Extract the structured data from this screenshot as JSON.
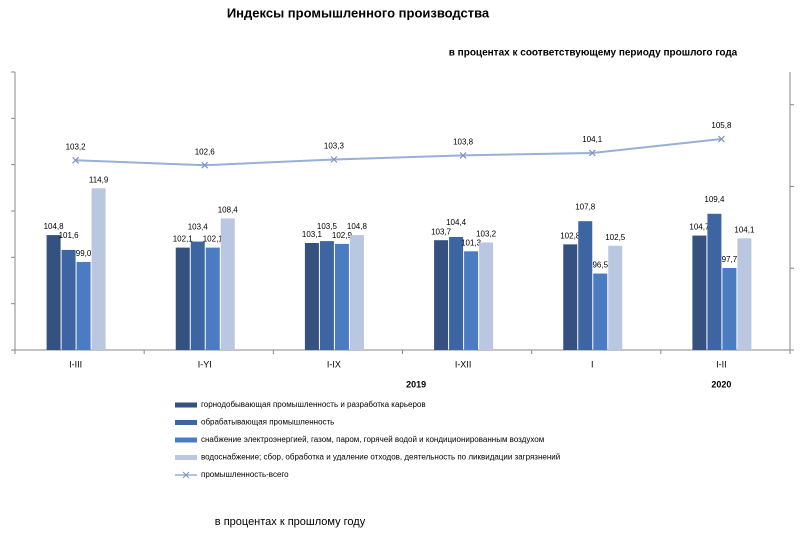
{
  "chart_data": {
    "type": "bar",
    "title": "Индексы промышленного производства",
    "subtitle": "в процентах к соответствующему  периоду прошлого года",
    "note": "в процентах к прошлому году",
    "categories": [
      "I-III",
      "I-YI",
      "I-IX",
      "I-XII",
      "I",
      "I-II"
    ],
    "groups": [
      {
        "label": "2019",
        "span": [
          0,
          3
        ]
      },
      {
        "label": "2020",
        "span": [
          4,
          5
        ]
      }
    ],
    "series": [
      {
        "name": "горнодобывающая промышленность и разработка карьеров",
        "color": "#34517f",
        "values": [
          104.8,
          102.1,
          103.1,
          103.7,
          102.8,
          104.7
        ],
        "value_labels": [
          "104,8",
          "102,1",
          "103,1",
          "103,7",
          "102,8",
          "104,7"
        ]
      },
      {
        "name": "обрабатывающая промышленность",
        "color": "#3d65a2",
        "values": [
          101.6,
          103.4,
          103.5,
          104.4,
          107.8,
          109.4
        ],
        "value_labels": [
          "101,6",
          "103,4",
          "103,5",
          "104,4",
          "107,8",
          "109,4"
        ]
      },
      {
        "name": "снабжение электроэнергией, газом, паром, горячей водой и  кондиционированным воздухом",
        "color": "#4b7cc1",
        "values": [
          99.0,
          102.1,
          102.9,
          101.3,
          96.5,
          97.7
        ],
        "value_labels": [
          "99,0",
          "102,1",
          "102,9",
          "101,3",
          "96,5",
          "97,7"
        ]
      },
      {
        "name": "водоснабжение; сбор, обработка и удаление отходов, деятельность по ликвидации загрязнений",
        "color": "#bac7e1",
        "values": [
          114.9,
          108.4,
          104.8,
          103.2,
          102.5,
          104.1
        ],
        "value_labels": [
          "114,9",
          "108,4",
          "104,8",
          "103,2",
          "102,5",
          "104,1"
        ]
      },
      {
        "name": "промышленность-всего",
        "color": "#98afd8",
        "type": "line",
        "axis": "y2",
        "values": [
          103.2,
          102.6,
          103.3,
          103.8,
          104.1,
          105.8
        ],
        "value_labels": [
          "103,2",
          "102,6",
          "103,3",
          "103,8",
          "104,1",
          "105,8"
        ]
      }
    ],
    "ylim": [
      80,
      140
    ],
    "yticks": [
      80,
      90,
      100,
      110,
      120,
      130,
      140
    ],
    "y2lim": [
      80,
      114
    ],
    "y2ticks": [
      80,
      90,
      100,
      110
    ],
    "show_tick_labels": false,
    "grid": false
  }
}
